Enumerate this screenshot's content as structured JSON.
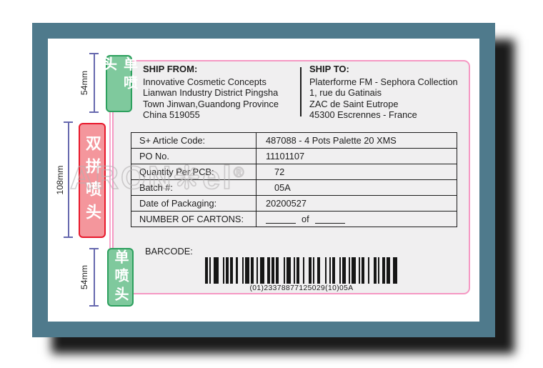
{
  "ship_from": {
    "title": "SHIP FROM:",
    "lines": "Innovative Cosmetic Concepts\nLianwan Industry District Pingsha\nTown Jinwan,Guandong Province\nChina 519055"
  },
  "ship_to": {
    "title": "SHIP TO:",
    "lines": "Platerforme FM - Sephora Collection\n1, rue du Gatinais\nZAC de Saint Eutrope\n45300 Escrennes - France"
  },
  "table": {
    "rows": [
      {
        "label": "S+ Article Code:",
        "value": "487088 - 4 Pots Palette 20 XMS"
      },
      {
        "label": "PO No.",
        "value": "11101107"
      },
      {
        "label": "Quantity Per PCB:",
        "value": "72"
      },
      {
        "label": "Batch #:",
        "value": "05A"
      },
      {
        "label": "Date of Packaging:",
        "value": "20200527"
      },
      {
        "label": "NUMBER OF CARTONS:",
        "value_of": "of"
      }
    ]
  },
  "barcode": {
    "label": "BARCODE:",
    "value": "(01)23378877125029(10)05A",
    "pattern": "211233112122131131221132212123113211221321122312112311221132112213211221223"
  },
  "measurements": {
    "top_label": "54mm",
    "middle_label": "108mm",
    "bottom_label": "54mm"
  },
  "tags": {
    "single_top": "单喷头",
    "double_middle": "双拼喷头",
    "single_bottom": "单喷头"
  },
  "watermark": {
    "text": "ARON❋el",
    "registered": "®"
  },
  "colors": {
    "frame_teal": "#4f7a8c",
    "shadow_black": "#0a0a0a",
    "label_border_pink": "#f598c3",
    "label_fill": "#f0eff0",
    "tag_green_fill": "#7fc99d",
    "tag_green_border": "#2da05e",
    "tag_red_fill": "#f4969c",
    "tag_red_border": "#e8182b",
    "measure_blue": "#6668ae",
    "text_black": "#1c1c1c"
  }
}
